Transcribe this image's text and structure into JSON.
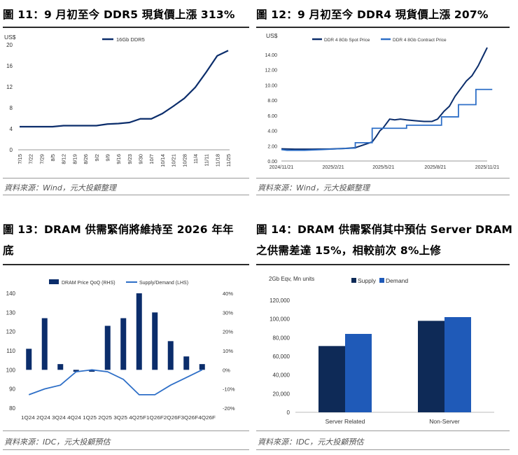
{
  "panels": [
    {
      "title": "圖 11：9 月初至今 DDR5 現貨價上漲 313%",
      "source": "資料來源：Wind，元大投顧整理",
      "chart_data": {
        "type": "line",
        "unit_label": "US$",
        "x": [
          "7/15",
          "7/22",
          "7/29",
          "8/5",
          "8/12",
          "8/19",
          "8/26",
          "9/2",
          "9/9",
          "9/16",
          "9/23",
          "9/30",
          "10/7",
          "10/14",
          "10/21",
          "10/28",
          "11/4",
          "11/11",
          "11/18",
          "11/25"
        ],
        "series": [
          {
            "name": "16Gb DDR5",
            "color": "#0b2d6b",
            "values": [
              4.4,
              4.4,
              4.4,
              4.4,
              4.6,
              4.6,
              4.6,
              4.6,
              4.9,
              5.0,
              5.2,
              5.9,
              5.9,
              6.9,
              8.3,
              9.8,
              11.9,
              14.8,
              17.9,
              18.9
            ]
          }
        ],
        "ylim": [
          0,
          20
        ],
        "yticks": [
          0,
          4,
          8,
          12,
          16,
          20
        ]
      }
    },
    {
      "title": "圖 12：9 月初至今 DDR4 現貨價上漲 207%",
      "source": "資料來源：Wind，元大投顧整理",
      "chart_data": {
        "type": "line",
        "unit_label": "US$",
        "x": [
          "2024/11/21",
          "2025/2/21",
          "2025/5/21",
          "2025/8/21",
          "2025/11/21"
        ],
        "x_range": [
          "2024-11-21",
          "2025-11-21"
        ],
        "series": [
          {
            "name": "DDR 4 8Gb Spot Price",
            "color": "#0b2d6b",
            "points": [
              [
                "2024-11-21",
                1.6
              ],
              [
                "2024-12-15",
                1.55
              ],
              [
                "2025-01-15",
                1.55
              ],
              [
                "2025-02-15",
                1.58
              ],
              [
                "2025-03-15",
                1.65
              ],
              [
                "2025-04-01",
                1.75
              ],
              [
                "2025-04-15",
                2.1
              ],
              [
                "2025-05-01",
                2.5
              ],
              [
                "2025-05-08",
                3.2
              ],
              [
                "2025-05-15",
                4.0
              ],
              [
                "2025-05-20",
                4.3
              ],
              [
                "2025-06-01",
                5.5
              ],
              [
                "2025-06-10",
                5.4
              ],
              [
                "2025-06-20",
                5.5
              ],
              [
                "2025-07-01",
                5.4
              ],
              [
                "2025-07-15",
                5.3
              ],
              [
                "2025-08-01",
                5.2
              ],
              [
                "2025-08-15",
                5.2
              ],
              [
                "2025-08-25",
                5.5
              ],
              [
                "2025-09-05",
                6.5
              ],
              [
                "2025-09-15",
                7.2
              ],
              [
                "2025-09-25",
                8.5
              ],
              [
                "2025-10-05",
                9.5
              ],
              [
                "2025-10-15",
                10.5
              ],
              [
                "2025-10-25",
                11.2
              ],
              [
                "2025-11-05",
                12.5
              ],
              [
                "2025-11-15",
                14.0
              ],
              [
                "2025-11-21",
                14.9
              ]
            ]
          },
          {
            "name": "DDR 4 8Gb Contract Price",
            "color": "#2e6fc7",
            "points": [
              [
                "2024-11-21",
                1.5
              ],
              [
                "2024-12-01",
                1.4
              ],
              [
                "2025-01-01",
                1.4
              ],
              [
                "2025-02-01",
                1.5
              ],
              [
                "2025-03-01",
                1.6
              ],
              [
                "2025-04-01",
                1.7
              ],
              [
                "2025-04-01",
                2.4
              ],
              [
                "2025-05-01",
                2.4
              ],
              [
                "2025-05-01",
                4.3
              ],
              [
                "2025-07-01",
                4.3
              ],
              [
                "2025-07-01",
                4.7
              ],
              [
                "2025-09-01",
                4.7
              ],
              [
                "2025-09-01",
                5.8
              ],
              [
                "2025-10-01",
                5.8
              ],
              [
                "2025-10-01",
                7.4
              ],
              [
                "2025-11-01",
                7.4
              ],
              [
                "2025-11-01",
                9.4
              ],
              [
                "2025-11-30",
                9.4
              ]
            ]
          }
        ],
        "ylim": [
          0,
          16
        ],
        "yticks": [
          "0.00",
          "2.00",
          "4.00",
          "6.00",
          "8.00",
          "10.00",
          "12.00",
          "14.00"
        ]
      }
    },
    {
      "title_lines": [
        "圖 13：DRAM 供需緊俏將維持至 2026 年年",
        "底"
      ],
      "source": "資料來源：IDC，元大投顧預估",
      "chart_data": {
        "type": "bar",
        "categories": [
          "1Q24",
          "2Q24",
          "3Q24",
          "4Q24",
          "1Q25",
          "2Q25",
          "3Q25",
          "4Q25",
          "1Q26",
          "2Q26",
          "3Q26",
          "4Q26"
        ],
        "axis_text": "1Q24 2Q24 3Q24 4Q24 1Q25 2Q25 3Q25 4Q25F1Q26F2Q26F3Q26F4Q26F",
        "series": [
          {
            "name": "DRAM Price QoQ (RHS)",
            "color": "#0b2d6b",
            "axis": "right",
            "values": [
              11,
              27,
              3,
              -1,
              -1,
              23,
              27,
              40,
              30,
              15,
              7,
              3
            ]
          },
          {
            "name": "Supply/Demand (LHS)",
            "color": "#2e6fc7",
            "axis": "left",
            "type": "line",
            "values": [
              87,
              90,
              92,
              99,
              100,
              99,
              95,
              87,
              87,
              92,
              96,
              100
            ]
          }
        ],
        "ylim_left": [
          80,
          140
        ],
        "ylim_right": [
          -20,
          40
        ],
        "yticks_left": [
          80,
          90,
          100,
          110,
          120,
          130,
          140
        ],
        "yticks_right": [
          "-20%",
          "-10%",
          "0%",
          "10%",
          "20%",
          "30%",
          "40%"
        ]
      }
    },
    {
      "title_lines": [
        "圖 14：DRAM 供需緊俏其中預估 Server DRAM",
        "之供需差達 15%，相較前次 8%上修"
      ],
      "source": "資料來源：IDC，元大投顧預估",
      "chart_data": {
        "type": "bar",
        "unit_label": "2Gb Eqv, Mn units",
        "categories": [
          "Server Related",
          "Non-Server"
        ],
        "series": [
          {
            "name": "Supply",
            "color": "#0e2a57",
            "values": [
              71000,
              98000
            ]
          },
          {
            "name": "Demand",
            "color": "#1f5ab8",
            "values": [
              84000,
              102000
            ]
          }
        ],
        "ylim": [
          0,
          120000
        ],
        "yticks": [
          "0",
          "20,000",
          "40,000",
          "60,000",
          "80,000",
          "100,000",
          "120,000"
        ]
      }
    }
  ]
}
